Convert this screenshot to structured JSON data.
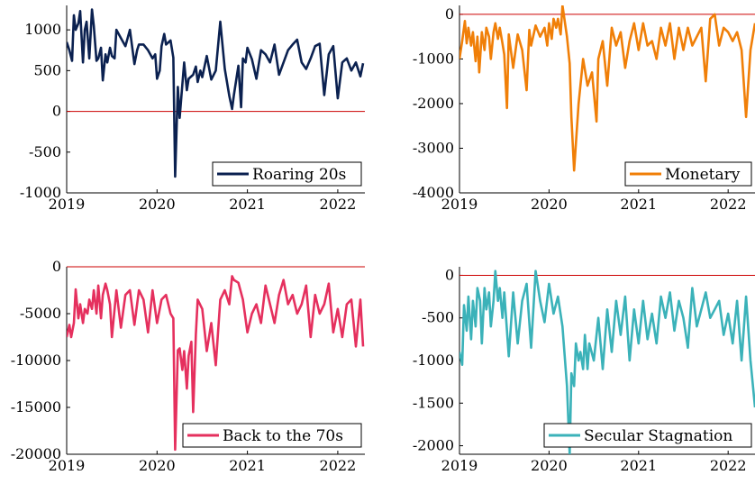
{
  "chart_data": [
    {
      "type": "line",
      "series": [
        {
          "name": "Roaring 20s",
          "color": "#0b2150",
          "x": [
            2019.0,
            2019.03,
            2019.06,
            2019.08,
            2019.1,
            2019.13,
            2019.15,
            2019.18,
            2019.2,
            2019.22,
            2019.25,
            2019.28,
            2019.3,
            2019.33,
            2019.35,
            2019.38,
            2019.4,
            2019.43,
            2019.45,
            2019.48,
            2019.5,
            2019.53,
            2019.55,
            2019.6,
            2019.65,
            2019.7,
            2019.75,
            2019.78,
            2019.8,
            2019.85,
            2019.9,
            2019.95,
            2019.98,
            2020.0,
            2020.03,
            2020.05,
            2020.08,
            2020.1,
            2020.15,
            2020.18,
            2020.2,
            2020.23,
            2020.25,
            2020.28,
            2020.3,
            2020.33,
            2020.35,
            2020.4,
            2020.43,
            2020.45,
            2020.48,
            2020.5,
            2020.55,
            2020.6,
            2020.65,
            2020.7,
            2020.75,
            2020.8,
            2020.83,
            2020.85,
            2020.9,
            2020.93,
            2020.95,
            2020.98,
            2021.0,
            2021.05,
            2021.1,
            2021.15,
            2021.2,
            2021.25,
            2021.3,
            2021.35,
            2021.4,
            2021.45,
            2021.5,
            2021.55,
            2021.6,
            2021.65,
            2021.7,
            2021.75,
            2021.8,
            2021.85,
            2021.9,
            2021.95,
            2022.0,
            2022.05,
            2022.1,
            2022.15,
            2022.2,
            2022.25,
            2022.28
          ],
          "y": [
            850,
            750,
            620,
            1180,
            1000,
            1080,
            1230,
            600,
            1000,
            1100,
            650,
            1250,
            1050,
            620,
            650,
            780,
            380,
            700,
            600,
            780,
            680,
            650,
            1000,
            900,
            800,
            1000,
            580,
            750,
            820,
            820,
            750,
            650,
            700,
            400,
            500,
            800,
            950,
            820,
            870,
            660,
            -800,
            300,
            -80,
            330,
            600,
            260,
            400,
            450,
            550,
            360,
            500,
            420,
            680,
            390,
            500,
            1100,
            520,
            190,
            30,
            200,
            560,
            50,
            650,
            600,
            780,
            640,
            400,
            750,
            700,
            600,
            820,
            450,
            600,
            750,
            820,
            880,
            600,
            520,
            650,
            800,
            830,
            200,
            700,
            800,
            160,
            600,
            650,
            500,
            600,
            430,
            590
          ]
        }
      ],
      "xticks": [
        "2019",
        "2020",
        "2021",
        "2022"
      ],
      "yticks": [
        "-1000",
        "-500",
        "0",
        "500",
        "1000"
      ],
      "xlim": [
        2019,
        2022.3
      ],
      "ylim": [
        -1000,
        1300
      ],
      "reference_line": 0,
      "reference_color": "#cc0000",
      "legend_position": "bottom-right"
    },
    {
      "type": "line",
      "series": [
        {
          "name": "Monetary",
          "color": "#f07f08",
          "x": [
            2019.0,
            2019.03,
            2019.06,
            2019.08,
            2019.1,
            2019.13,
            2019.15,
            2019.18,
            2019.2,
            2019.22,
            2019.25,
            2019.28,
            2019.3,
            2019.33,
            2019.35,
            2019.38,
            2019.4,
            2019.43,
            2019.45,
            2019.48,
            2019.5,
            2019.53,
            2019.55,
            2019.6,
            2019.65,
            2019.7,
            2019.75,
            2019.78,
            2019.8,
            2019.85,
            2019.9,
            2019.95,
            2019.98,
            2020.0,
            2020.03,
            2020.05,
            2020.08,
            2020.1,
            2020.13,
            2020.15,
            2020.2,
            2020.23,
            2020.25,
            2020.28,
            2020.33,
            2020.38,
            2020.43,
            2020.48,
            2020.53,
            2020.55,
            2020.6,
            2020.65,
            2020.7,
            2020.75,
            2020.8,
            2020.85,
            2020.9,
            2020.95,
            2021.0,
            2021.05,
            2021.1,
            2021.15,
            2021.2,
            2021.25,
            2021.3,
            2021.35,
            2021.4,
            2021.45,
            2021.5,
            2021.55,
            2021.6,
            2021.65,
            2021.7,
            2021.75,
            2021.8,
            2021.85,
            2021.9,
            2021.95,
            2022.0,
            2022.05,
            2022.1,
            2022.15,
            2022.2,
            2022.25,
            2022.3
          ],
          "y": [
            -1000,
            -600,
            -150,
            -650,
            -300,
            -700,
            -400,
            -1050,
            -500,
            -1300,
            -400,
            -800,
            -300,
            -500,
            -1000,
            -400,
            -200,
            -550,
            -300,
            -650,
            -900,
            -2100,
            -450,
            -1200,
            -450,
            -800,
            -1700,
            -350,
            -700,
            -250,
            -500,
            -300,
            -700,
            -200,
            -550,
            -100,
            -300,
            -100,
            -450,
            200,
            -500,
            -1100,
            -2300,
            -3500,
            -2000,
            -1000,
            -1600,
            -1300,
            -2400,
            -1000,
            -600,
            -1600,
            -300,
            -700,
            -400,
            -1200,
            -600,
            -200,
            -800,
            -200,
            -700,
            -600,
            -1000,
            -300,
            -700,
            -200,
            -1000,
            -300,
            -800,
            -300,
            -700,
            -500,
            -300,
            -1500,
            -100,
            0,
            -700,
            -300,
            -400,
            -600,
            -400,
            -800,
            -2300,
            -800,
            -200
          ]
        }
      ],
      "xticks": [
        "2019",
        "2020",
        "2021",
        "2022"
      ],
      "yticks": [
        "-4000",
        "-3000",
        "-2000",
        "-1000",
        "0"
      ],
      "xlim": [
        2019,
        2022.3
      ],
      "ylim": [
        -4000,
        200
      ],
      "reference_line": 0,
      "reference_color": "#cc0000",
      "legend_position": "bottom-right"
    },
    {
      "type": "line",
      "series": [
        {
          "name": "Back to the 70s",
          "color": "#e5305e",
          "x": [
            2019.0,
            2019.03,
            2019.05,
            2019.08,
            2019.1,
            2019.13,
            2019.15,
            2019.18,
            2019.2,
            2019.23,
            2019.25,
            2019.28,
            2019.3,
            2019.33,
            2019.35,
            2019.38,
            2019.4,
            2019.43,
            2019.45,
            2019.48,
            2019.5,
            2019.55,
            2019.6,
            2019.65,
            2019.7,
            2019.75,
            2019.8,
            2019.85,
            2019.9,
            2019.95,
            2020.0,
            2020.05,
            2020.1,
            2020.15,
            2020.18,
            2020.2,
            2020.23,
            2020.25,
            2020.28,
            2020.3,
            2020.33,
            2020.35,
            2020.38,
            2020.4,
            2020.43,
            2020.45,
            2020.5,
            2020.55,
            2020.6,
            2020.65,
            2020.7,
            2020.75,
            2020.8,
            2020.83,
            2020.85,
            2020.9,
            2020.95,
            2021.0,
            2021.05,
            2021.1,
            2021.15,
            2021.2,
            2021.25,
            2021.3,
            2021.35,
            2021.4,
            2021.45,
            2021.5,
            2021.55,
            2021.6,
            2021.65,
            2021.7,
            2021.75,
            2021.8,
            2021.85,
            2021.9,
            2021.95,
            2022.0,
            2022.05,
            2022.1,
            2022.15,
            2022.2,
            2022.25,
            2022.28
          ],
          "y": [
            -7500,
            -6200,
            -7500,
            -6000,
            -2400,
            -5500,
            -4000,
            -6000,
            -4500,
            -5000,
            -3500,
            -4500,
            -2500,
            -5000,
            -2000,
            -5500,
            -3000,
            -1800,
            -2500,
            -4000,
            -7500,
            -2500,
            -6500,
            -3000,
            -2500,
            -6200,
            -2500,
            -3500,
            -7000,
            -2500,
            -6000,
            -3500,
            -3000,
            -5000,
            -5500,
            -19500,
            -8900,
            -8700,
            -11000,
            -9000,
            -13000,
            -9500,
            -8000,
            -15500,
            -7200,
            -3500,
            -4500,
            -9000,
            -6000,
            -10500,
            -3500,
            -2500,
            -4000,
            -1000,
            -1400,
            -1700,
            -3500,
            -7000,
            -5000,
            -4000,
            -6000,
            -2000,
            -4000,
            -6000,
            -3000,
            -1400,
            -4000,
            -3000,
            -5000,
            -4000,
            -2000,
            -7500,
            -3000,
            -5000,
            -4000,
            -1800,
            -7000,
            -4500,
            -7500,
            -4000,
            -3500,
            -8500,
            -3500,
            -8500
          ]
        }
      ],
      "xticks": [
        "2019",
        "2020",
        "2021",
        "2022"
      ],
      "yticks": [
        "-20000",
        "-15000",
        "-10000",
        "-5000",
        "0"
      ],
      "xlim": [
        2019,
        2022.3
      ],
      "ylim": [
        -20000,
        0
      ],
      "reference_line": 0,
      "reference_color": "#cc0000",
      "legend_position": "bottom-right"
    },
    {
      "type": "line",
      "series": [
        {
          "name": "Secular Stagnation",
          "color": "#3bb2b9",
          "x": [
            2019.0,
            2019.03,
            2019.05,
            2019.08,
            2019.1,
            2019.13,
            2019.15,
            2019.18,
            2019.2,
            2019.23,
            2019.25,
            2019.28,
            2019.3,
            2019.33,
            2019.35,
            2019.38,
            2019.4,
            2019.43,
            2019.45,
            2019.48,
            2019.5,
            2019.55,
            2019.6,
            2019.65,
            2019.7,
            2019.75,
            2019.8,
            2019.85,
            2019.9,
            2019.95,
            2020.0,
            2020.05,
            2020.1,
            2020.15,
            2020.2,
            2020.23,
            2020.25,
            2020.28,
            2020.3,
            2020.33,
            2020.35,
            2020.38,
            2020.4,
            2020.43,
            2020.45,
            2020.5,
            2020.55,
            2020.6,
            2020.65,
            2020.7,
            2020.75,
            2020.8,
            2020.85,
            2020.9,
            2020.95,
            2021.0,
            2021.05,
            2021.1,
            2021.15,
            2021.2,
            2021.25,
            2021.3,
            2021.35,
            2021.4,
            2021.45,
            2021.5,
            2021.55,
            2021.6,
            2021.65,
            2021.7,
            2021.75,
            2021.8,
            2021.85,
            2021.9,
            2021.95,
            2022.0,
            2022.05,
            2022.1,
            2022.15,
            2022.2,
            2022.25,
            2022.3
          ],
          "y": [
            -900,
            -1050,
            -350,
            -650,
            -250,
            -750,
            -300,
            -600,
            -150,
            -300,
            -800,
            -150,
            -400,
            -200,
            -600,
            -300,
            50,
            -300,
            -150,
            -500,
            -200,
            -950,
            -200,
            -800,
            -300,
            -100,
            -850,
            50,
            -300,
            -550,
            -100,
            -450,
            -250,
            -600,
            -1300,
            -2100,
            -1150,
            -1300,
            -800,
            -1000,
            -900,
            -1100,
            -700,
            -1100,
            -800,
            -1000,
            -500,
            -1100,
            -400,
            -900,
            -300,
            -700,
            -250,
            -1000,
            -400,
            -800,
            -300,
            -750,
            -450,
            -800,
            -250,
            -500,
            -200,
            -650,
            -300,
            -500,
            -850,
            -150,
            -600,
            -400,
            -200,
            -500,
            -400,
            -300,
            -700,
            -450,
            -800,
            -300,
            -1000,
            -250,
            -1000,
            -1550
          ]
        }
      ],
      "xticks": [
        "2019",
        "2020",
        "2021",
        "2022"
      ],
      "yticks": [
        "-2000",
        "-1500",
        "-1000",
        "-500",
        "0"
      ],
      "xlim": [
        2019,
        2022.3
      ],
      "ylim": [
        -2100,
        100
      ],
      "reference_line": 0,
      "reference_color": "#cc0000",
      "legend_position": "bottom-right"
    }
  ]
}
